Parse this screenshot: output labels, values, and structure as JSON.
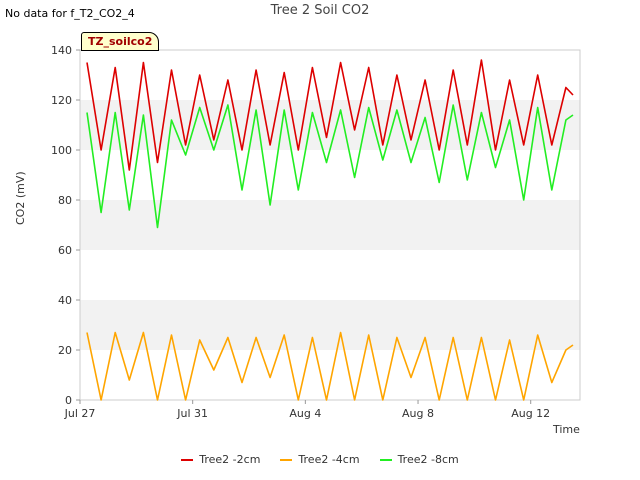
{
  "header": {
    "no_data_text": "No data for f_T2_CO2_4",
    "title": "Tree 2 Soil CO2",
    "badge": "TZ_soilco2"
  },
  "colors": {
    "tree2_2cm": "#dd0000",
    "tree2_4cm": "#ffa500",
    "tree2_8cm": "#22ee22",
    "band": "#f2f2f2",
    "axis": "#cccccc"
  },
  "chart_data": {
    "type": "line",
    "title": "Tree 2 Soil CO2",
    "xlabel": "Time",
    "ylabel": "CO2 (mV)",
    "xlim": [
      "2023-07-27",
      "2023-08-13T18:00"
    ],
    "ylim": [
      0,
      140
    ],
    "yticks": [
      0,
      20,
      40,
      60,
      80,
      100,
      120,
      140
    ],
    "xticks": [
      "Jul 27",
      "Jul 31",
      "Aug 4",
      "Aug 8",
      "Aug 12"
    ],
    "xtick_dates": [
      "2023-07-27",
      "2023-07-31",
      "2023-08-04",
      "2023-08-08",
      "2023-08-12"
    ],
    "grid": "alternating horizontal bands",
    "legend": "bottom-center",
    "series": [
      {
        "name": "Tree2 -2cm",
        "color_key": "tree2_2cm",
        "x": [
          "2023-07-27T06:00",
          "2023-07-27T18:00",
          "2023-07-28T06:00",
          "2023-07-28T18:00",
          "2023-07-29T06:00",
          "2023-07-29T18:00",
          "2023-07-30T06:00",
          "2023-07-30T18:00",
          "2023-07-31T06:00",
          "2023-07-31T18:00",
          "2023-08-01T06:00",
          "2023-08-01T18:00",
          "2023-08-02T06:00",
          "2023-08-02T18:00",
          "2023-08-03T06:00",
          "2023-08-03T18:00",
          "2023-08-04T06:00",
          "2023-08-04T18:00",
          "2023-08-05T06:00",
          "2023-08-05T18:00",
          "2023-08-06T06:00",
          "2023-08-06T18:00",
          "2023-08-07T06:00",
          "2023-08-07T18:00",
          "2023-08-08T06:00",
          "2023-08-08T18:00",
          "2023-08-09T06:00",
          "2023-08-09T18:00",
          "2023-08-10T06:00",
          "2023-08-10T18:00",
          "2023-08-11T06:00",
          "2023-08-11T18:00",
          "2023-08-12T06:00",
          "2023-08-12T18:00",
          "2023-08-13T06:00",
          "2023-08-13T12:00"
        ],
        "y": [
          135,
          100,
          133,
          92,
          135,
          95,
          132,
          102,
          130,
          104,
          128,
          100,
          132,
          102,
          131,
          100,
          133,
          105,
          135,
          108,
          133,
          102,
          130,
          104,
          128,
          100,
          132,
          102,
          136,
          100,
          128,
          102,
          130,
          102,
          125,
          122
        ]
      },
      {
        "name": "Tree2 -4cm",
        "color_key": "tree2_4cm",
        "x": [
          "2023-07-27T06:00",
          "2023-07-27T18:00",
          "2023-07-28T06:00",
          "2023-07-28T18:00",
          "2023-07-29T06:00",
          "2023-07-29T18:00",
          "2023-07-30T06:00",
          "2023-07-30T18:00",
          "2023-07-31T06:00",
          "2023-07-31T18:00",
          "2023-08-01T06:00",
          "2023-08-01T18:00",
          "2023-08-02T06:00",
          "2023-08-02T18:00",
          "2023-08-03T06:00",
          "2023-08-03T18:00",
          "2023-08-04T06:00",
          "2023-08-04T18:00",
          "2023-08-05T06:00",
          "2023-08-05T18:00",
          "2023-08-06T06:00",
          "2023-08-06T18:00",
          "2023-08-07T06:00",
          "2023-08-07T18:00",
          "2023-08-08T06:00",
          "2023-08-08T18:00",
          "2023-08-09T06:00",
          "2023-08-09T18:00",
          "2023-08-10T06:00",
          "2023-08-10T18:00",
          "2023-08-11T06:00",
          "2023-08-11T18:00",
          "2023-08-12T06:00",
          "2023-08-12T18:00",
          "2023-08-13T06:00",
          "2023-08-13T12:00"
        ],
        "y": [
          27,
          0,
          27,
          8,
          27,
          0,
          26,
          0,
          24,
          12,
          25,
          7,
          25,
          9,
          26,
          0,
          25,
          0,
          27,
          0,
          26,
          0,
          25,
          9,
          25,
          0,
          25,
          0,
          25,
          0,
          24,
          0,
          26,
          7,
          20,
          22
        ]
      },
      {
        "name": "Tree2 -8cm",
        "color_key": "tree2_8cm",
        "x": [
          "2023-07-27T06:00",
          "2023-07-27T18:00",
          "2023-07-28T06:00",
          "2023-07-28T18:00",
          "2023-07-29T06:00",
          "2023-07-29T18:00",
          "2023-07-30T06:00",
          "2023-07-30T18:00",
          "2023-07-31T06:00",
          "2023-07-31T18:00",
          "2023-08-01T06:00",
          "2023-08-01T18:00",
          "2023-08-02T06:00",
          "2023-08-02T18:00",
          "2023-08-03T06:00",
          "2023-08-03T18:00",
          "2023-08-04T06:00",
          "2023-08-04T18:00",
          "2023-08-05T06:00",
          "2023-08-05T18:00",
          "2023-08-06T06:00",
          "2023-08-06T18:00",
          "2023-08-07T06:00",
          "2023-08-07T18:00",
          "2023-08-08T06:00",
          "2023-08-08T18:00",
          "2023-08-09T06:00",
          "2023-08-09T18:00",
          "2023-08-10T06:00",
          "2023-08-10T18:00",
          "2023-08-11T06:00",
          "2023-08-11T18:00",
          "2023-08-12T06:00",
          "2023-08-12T18:00",
          "2023-08-13T06:00",
          "2023-08-13T12:00"
        ],
        "y": [
          115,
          75,
          115,
          76,
          114,
          69,
          112,
          98,
          117,
          100,
          118,
          84,
          116,
          78,
          116,
          84,
          115,
          95,
          116,
          89,
          117,
          96,
          116,
          95,
          113,
          87,
          118,
          88,
          115,
          93,
          112,
          80,
          117,
          84,
          112,
          114
        ]
      }
    ]
  }
}
